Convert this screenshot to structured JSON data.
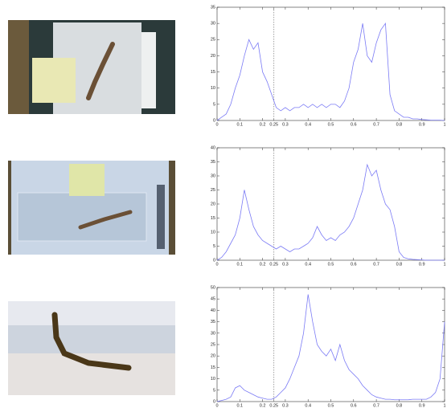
{
  "chart_data": [
    {
      "type": "line",
      "color": "#7b7bf5",
      "vline": 0.25,
      "xlim": [
        0,
        1
      ],
      "xticks": [
        0,
        0.1,
        0.2,
        0.25,
        0.3,
        0.4,
        0.5,
        0.6,
        0.7,
        0.8,
        0.9,
        1
      ],
      "ylim": [
        0,
        35
      ],
      "yticks": [
        0,
        5,
        10,
        15,
        20,
        25,
        30,
        35
      ],
      "x": [
        0,
        0.02,
        0.04,
        0.06,
        0.08,
        0.1,
        0.12,
        0.14,
        0.16,
        0.18,
        0.2,
        0.22,
        0.24,
        0.26,
        0.28,
        0.3,
        0.32,
        0.34,
        0.36,
        0.38,
        0.4,
        0.42,
        0.44,
        0.46,
        0.48,
        0.5,
        0.52,
        0.54,
        0.56,
        0.58,
        0.6,
        0.62,
        0.64,
        0.66,
        0.68,
        0.7,
        0.72,
        0.74,
        0.76,
        0.78,
        0.8,
        0.82,
        0.84,
        0.86,
        0.88,
        0.9,
        0.92,
        0.94,
        0.96,
        0.98,
        1
      ],
      "values": [
        0,
        1,
        2,
        5,
        10,
        14,
        20,
        25,
        22,
        24,
        15,
        12,
        8,
        4,
        3,
        4,
        3,
        4,
        4,
        5,
        4,
        5,
        4,
        5,
        4,
        5,
        5,
        4,
        6,
        10,
        18,
        22,
        30,
        20,
        18,
        24,
        28,
        30,
        8,
        3,
        2,
        1,
        1,
        0.5,
        0.5,
        0.3,
        0.2,
        0.1,
        0.1,
        0.1,
        0
      ]
    },
    {
      "type": "line",
      "color": "#7b7bf5",
      "vline": 0.25,
      "xlim": [
        0,
        1
      ],
      "xticks": [
        0,
        0.1,
        0.2,
        0.25,
        0.3,
        0.4,
        0.5,
        0.6,
        0.7,
        0.8,
        0.9,
        1
      ],
      "ylim": [
        0,
        40
      ],
      "yticks": [
        0,
        5,
        10,
        15,
        20,
        25,
        30,
        35,
        40
      ],
      "x": [
        0,
        0.02,
        0.04,
        0.06,
        0.08,
        0.1,
        0.12,
        0.14,
        0.16,
        0.18,
        0.2,
        0.22,
        0.24,
        0.26,
        0.28,
        0.3,
        0.32,
        0.34,
        0.36,
        0.38,
        0.4,
        0.42,
        0.44,
        0.46,
        0.48,
        0.5,
        0.52,
        0.54,
        0.56,
        0.58,
        0.6,
        0.62,
        0.64,
        0.66,
        0.68,
        0.7,
        0.72,
        0.74,
        0.76,
        0.78,
        0.8,
        0.82,
        0.84,
        0.86,
        0.88,
        0.9,
        0.92,
        0.94,
        0.96,
        0.98,
        1
      ],
      "values": [
        0,
        1,
        3,
        6,
        9,
        15,
        25,
        18,
        12,
        9,
        7,
        6,
        5,
        4,
        5,
        4,
        3,
        4,
        4,
        5,
        6,
        8,
        12,
        9,
        7,
        8,
        7,
        9,
        10,
        12,
        15,
        20,
        25,
        34,
        30,
        32,
        25,
        20,
        18,
        12,
        3,
        1,
        0.5,
        0.3,
        0.2,
        0.1,
        0,
        0,
        0,
        0,
        0
      ]
    },
    {
      "type": "line",
      "color": "#7b7bf5",
      "vline": 0.25,
      "xlim": [
        0,
        1
      ],
      "xticks": [
        0,
        0.1,
        0.2,
        0.25,
        0.3,
        0.4,
        0.5,
        0.6,
        0.7,
        0.8,
        0.9,
        1
      ],
      "ylim": [
        0,
        50
      ],
      "yticks": [
        0,
        5,
        10,
        15,
        20,
        25,
        30,
        35,
        40,
        45,
        50
      ],
      "x": [
        0,
        0.02,
        0.04,
        0.06,
        0.08,
        0.1,
        0.12,
        0.14,
        0.16,
        0.18,
        0.2,
        0.22,
        0.24,
        0.26,
        0.28,
        0.3,
        0.32,
        0.34,
        0.36,
        0.38,
        0.4,
        0.42,
        0.44,
        0.46,
        0.48,
        0.5,
        0.52,
        0.54,
        0.56,
        0.58,
        0.6,
        0.62,
        0.64,
        0.66,
        0.68,
        0.7,
        0.72,
        0.74,
        0.76,
        0.78,
        0.8,
        0.82,
        0.84,
        0.86,
        0.88,
        0.9,
        0.92,
        0.94,
        0.96,
        0.98,
        1
      ],
      "values": [
        0,
        0.5,
        1,
        2,
        6,
        7,
        5,
        4,
        3,
        2,
        1.5,
        1,
        1,
        2,
        4,
        6,
        10,
        15,
        20,
        30,
        47,
        35,
        25,
        22,
        20,
        23,
        18,
        25,
        18,
        14,
        12,
        10,
        7,
        5,
        3,
        2,
        1.5,
        1,
        1,
        0.8,
        0.8,
        0.8,
        0.8,
        1,
        1,
        1,
        1,
        2,
        4,
        10,
        35
      ]
    }
  ]
}
